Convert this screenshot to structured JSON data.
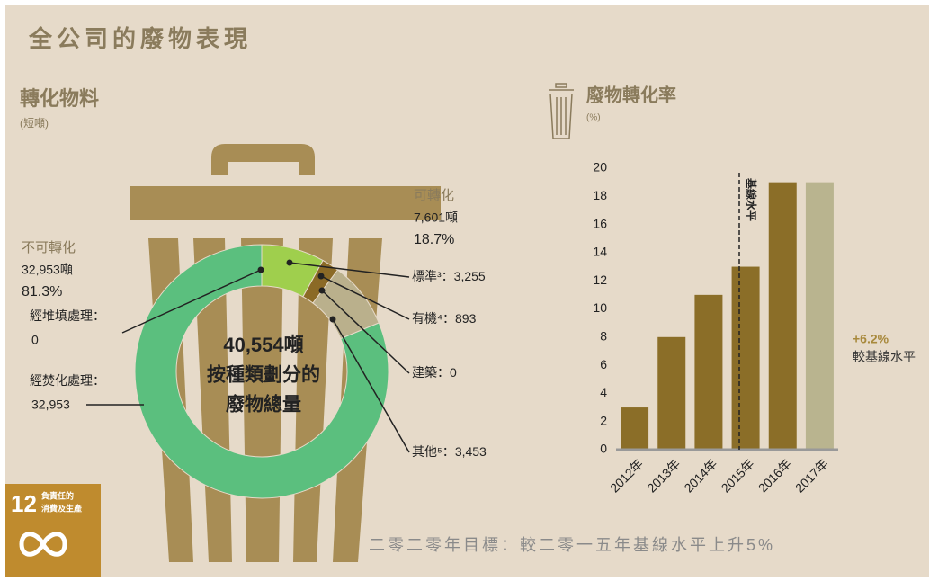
{
  "title": "全公司的廢物表現",
  "footer": "二零二零年目標：較二零一五年基線水平上升5%",
  "badge": {
    "number": "12",
    "lines": [
      "負責任的",
      "消費及生產"
    ]
  },
  "chart_data": [
    {
      "type": "donut",
      "title": "轉化物料",
      "subtitle": "(短噸)",
      "center": [
        "40,554噸",
        "按種類劃分的",
        "廢物總量"
      ],
      "groups": [
        {
          "name": "可轉化",
          "amount": "7,601噸",
          "share": "18.7%"
        },
        {
          "name": "不可轉化",
          "amount": "32,953噸",
          "share": "81.3%"
        }
      ],
      "categories": [
        "標準³：",
        "有機⁴：",
        "建築：",
        "其他⁵：",
        "經焚化處理：",
        "經堆填處理："
      ],
      "values": [
        3255,
        893,
        0,
        3453,
        32953,
        0
      ],
      "value_labels": [
        "3,255",
        "893",
        "0",
        "3,453",
        "32,953",
        "0"
      ],
      "colors": [
        "#9fcf4d",
        "#8b6a26",
        "#8b6a26",
        "#bab08c",
        "#5bbf7e",
        "#5bbf7e"
      ]
    },
    {
      "type": "bar",
      "title": "廢物轉化率",
      "subtitle": "(%)",
      "categories": [
        "2012年",
        "2013年",
        "2014年",
        "2015年",
        "2016年",
        "2017年"
      ],
      "values": [
        3,
        8,
        11,
        13,
        19,
        19
      ],
      "colors": [
        "#8b6e28",
        "#8b6e28",
        "#8b6e28",
        "#8b6e28",
        "#8b6e28",
        "#b9b48f"
      ],
      "ylim": [
        0,
        20
      ],
      "yticks": [
        0,
        2,
        4,
        6,
        8,
        10,
        12,
        14,
        16,
        18,
        20
      ],
      "reference_label": "基線水平",
      "annotation": [
        "+6.2%",
        "較基線水平"
      ]
    }
  ]
}
